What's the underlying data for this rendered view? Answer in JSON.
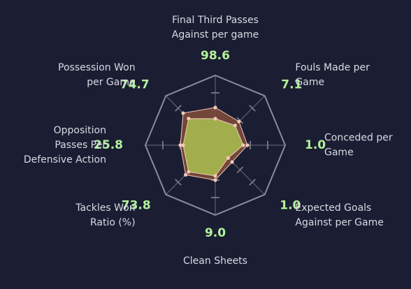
{
  "chart_data": {
    "type": "radar",
    "title": "",
    "axes": [
      {
        "label_lines": [
          "Final Third Passes",
          "Against per game"
        ],
        "value_text": "98.6"
      },
      {
        "label_lines": [
          "Fouls Made per",
          "Game"
        ],
        "value_text": "7.1"
      },
      {
        "label_lines": [
          "Conceded per",
          "Game"
        ],
        "value_text": "1.0"
      },
      {
        "label_lines": [
          "Expected Goals",
          "Against per Game"
        ],
        "value_text": "1.0"
      },
      {
        "label_lines": [
          "Clean Sheets"
        ],
        "value_text": "9.0"
      },
      {
        "label_lines": [
          "Tackles Won",
          "Ratio (%)"
        ],
        "value_text": "73.8"
      },
      {
        "label_lines": [
          "Opposition",
          "Passes Per",
          "Defensive Action"
        ],
        "value_text": "25.8"
      },
      {
        "label_lines": [
          "Possession Won",
          "per Game"
        ],
        "value_text": "74.7"
      }
    ],
    "series": [
      {
        "values": [
          0.54,
          0.48,
          0.46,
          0.34,
          0.5,
          0.6,
          0.5,
          0.65
        ],
        "color": "#7a4a3a"
      },
      {
        "values": [
          0.38,
          0.4,
          0.4,
          0.26,
          0.44,
          0.54,
          0.46,
          0.54
        ],
        "color": "#a8bd4e"
      }
    ],
    "grid_levels": 4,
    "colors": {
      "background": "#1b1d33",
      "grid": "#8a8c9a",
      "axis_text": "#d9dae2",
      "value_text": "#b3f29b",
      "marker": "#f3c9b9"
    }
  }
}
